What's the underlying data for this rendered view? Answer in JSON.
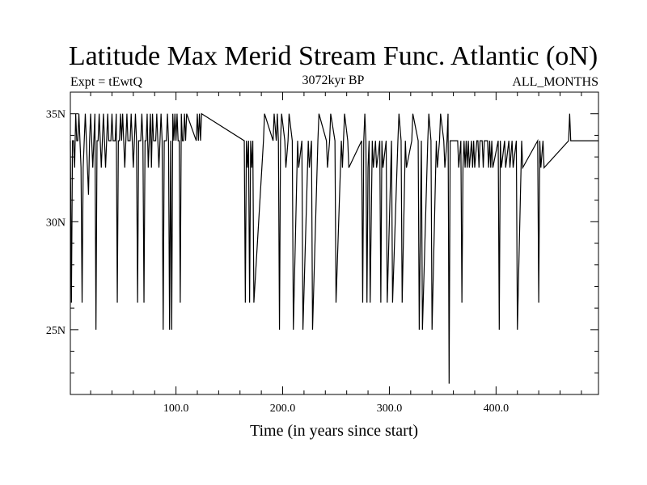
{
  "chart_data": {
    "type": "line",
    "title": "Latitude Max Merid Stream Func. Atlantic (oN)",
    "subtitle_left": "Expt = tEwtQ",
    "subtitle_center": "3072kyr BP",
    "subtitle_right": "ALL_MONTHS",
    "xlabel": "Time (in years since start)",
    "ylabel": "",
    "xlim": [
      1,
      496
    ],
    "ylim": [
      22,
      36
    ],
    "x_major_ticks": [
      100,
      200,
      300,
      400
    ],
    "x_tick_labels": [
      "100.0",
      "200.0",
      "300.0",
      "400.0"
    ],
    "y_major_ticks": [
      25,
      30,
      35
    ],
    "y_tick_labels": [
      "25N",
      "30N",
      "35N"
    ],
    "baseline": 33.75,
    "series": [
      {
        "events": [
          [
            2,
            26.25
          ],
          [
            4,
            33.75
          ],
          [
            5,
            32.5
          ],
          [
            6,
            35.0
          ],
          [
            7,
            33.75
          ],
          [
            9,
            35.0
          ],
          [
            11,
            32.5
          ],
          [
            12,
            26.25
          ],
          [
            13,
            32.5
          ],
          [
            15,
            35.0
          ],
          [
            17,
            32.5
          ],
          [
            18,
            31.25
          ],
          [
            20,
            35.0
          ],
          [
            22,
            32.5
          ],
          [
            24,
            35.0
          ],
          [
            25,
            25.0
          ],
          [
            26,
            33.75
          ],
          [
            28,
            35.0
          ],
          [
            30,
            32.5
          ],
          [
            32,
            35.0
          ],
          [
            33,
            33.75
          ],
          [
            34,
            32.5
          ],
          [
            36,
            35.0
          ],
          [
            38,
            33.75
          ],
          [
            40,
            35.0
          ],
          [
            42,
            33.75
          ],
          [
            44,
            35.0
          ],
          [
            45,
            26.25
          ],
          [
            46,
            33.75
          ],
          [
            48,
            35.0
          ],
          [
            50,
            35.0
          ],
          [
            52,
            32.5
          ],
          [
            54,
            35.0
          ],
          [
            56,
            33.75
          ],
          [
            58,
            35.0
          ],
          [
            60,
            32.5
          ],
          [
            62,
            35.0
          ],
          [
            64,
            26.25
          ],
          [
            66,
            33.75
          ],
          [
            68,
            35.0
          ],
          [
            70,
            26.25
          ],
          [
            72,
            33.75
          ],
          [
            73,
            35.0
          ],
          [
            74,
            32.5
          ],
          [
            76,
            35.0
          ],
          [
            77,
            32.5
          ],
          [
            78,
            35.0
          ],
          [
            80,
            33.75
          ],
          [
            82,
            35.0
          ],
          [
            84,
            32.5
          ],
          [
            86,
            35.0
          ],
          [
            88,
            25.0
          ],
          [
            90,
            33.75
          ],
          [
            92,
            35.0
          ],
          [
            94,
            25.0
          ],
          [
            96,
            25.0
          ],
          [
            97,
            35.0
          ],
          [
            99,
            35.0
          ],
          [
            100,
            33.75
          ],
          [
            101,
            35.0
          ],
          [
            103,
            33.75
          ],
          [
            104,
            26.25
          ],
          [
            105,
            35.0
          ],
          [
            107,
            33.75
          ],
          [
            108,
            35.0
          ],
          [
            110,
            35.0
          ],
          [
            120,
            35.0
          ],
          [
            122,
            35.0
          ],
          [
            124,
            35.0
          ],
          [
            165,
            26.25
          ],
          [
            167,
            32.5
          ],
          [
            169,
            26.25
          ],
          [
            171,
            32.5
          ],
          [
            173,
            26.25
          ],
          [
            183,
            35.0
          ],
          [
            192,
            35.0
          ],
          [
            195,
            35.0
          ],
          [
            197,
            25.0
          ],
          [
            199,
            35.0
          ],
          [
            203,
            32.5
          ],
          [
            206,
            35.0
          ],
          [
            210,
            25.0
          ],
          [
            215,
            32.5
          ],
          [
            219,
            25.0
          ],
          [
            225,
            32.5
          ],
          [
            228,
            25.0
          ],
          [
            234,
            35.0
          ],
          [
            242,
            32.5
          ],
          [
            245,
            35.0
          ],
          [
            250,
            26.25
          ],
          [
            256,
            32.5
          ],
          [
            258,
            35.0
          ],
          [
            262,
            32.5
          ],
          [
            275,
            26.25
          ],
          [
            277,
            35.0
          ],
          [
            279,
            26.25
          ],
          [
            280,
            32.5
          ],
          [
            282,
            26.25
          ],
          [
            285,
            32.5
          ],
          [
            288,
            32.5
          ],
          [
            292,
            26.25
          ],
          [
            294,
            32.5
          ],
          [
            298,
            26.25
          ],
          [
            303,
            26.25
          ],
          [
            309,
            35.0
          ],
          [
            312,
            26.25
          ],
          [
            316,
            32.5
          ],
          [
            322,
            35.0
          ],
          [
            328,
            25.0
          ],
          [
            331,
            25.0
          ],
          [
            337,
            35.0
          ],
          [
            340,
            25.0
          ],
          [
            345,
            32.5
          ],
          [
            348,
            35.0
          ],
          [
            352,
            32.5
          ],
          [
            355,
            35.0
          ],
          [
            356,
            22.5
          ],
          [
            357,
            33.75
          ],
          [
            365,
            32.5
          ],
          [
            368,
            26.25
          ],
          [
            369,
            32.5
          ],
          [
            371,
            32.5
          ],
          [
            372,
            33.75
          ],
          [
            373,
            32.5
          ],
          [
            374,
            33.75
          ],
          [
            375,
            32.5
          ],
          [
            378,
            32.5
          ],
          [
            380,
            32.5
          ],
          [
            383,
            33.75
          ],
          [
            384,
            32.5
          ],
          [
            386,
            33.75
          ],
          [
            388,
            32.5
          ],
          [
            389,
            33.75
          ],
          [
            393,
            32.5
          ],
          [
            395,
            32.5
          ],
          [
            397,
            32.5
          ],
          [
            403,
            25.0
          ],
          [
            405,
            32.5
          ],
          [
            409,
            32.5
          ],
          [
            413,
            32.5
          ],
          [
            416,
            32.5
          ],
          [
            420,
            25.0
          ],
          [
            425,
            32.5
          ],
          [
            440,
            26.25
          ],
          [
            442,
            32.5
          ],
          [
            445,
            32.5
          ],
          [
            469,
            35.0
          ]
        ]
      }
    ]
  }
}
